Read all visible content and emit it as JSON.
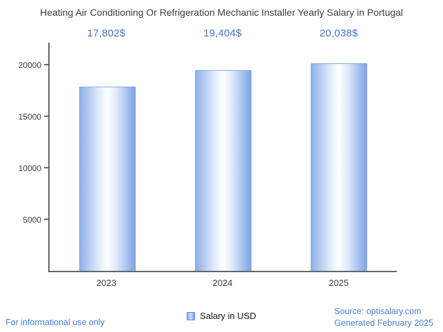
{
  "chart_data": {
    "type": "bar",
    "title": "Heating Air Conditioning Or Refrigeration Mechanic Installer Yearly Salary in Portugal",
    "categories": [
      "2023",
      "2024",
      "2025"
    ],
    "values": [
      17802,
      19404,
      20038
    ],
    "value_labels": [
      "17,802$",
      "19,404$",
      "20,038$"
    ],
    "yticks": [
      5000,
      10000,
      15000,
      20000
    ],
    "ylim": [
      0,
      22000
    ],
    "legend": "Salary in USD",
    "grid": false,
    "legend_position": "bottom-center"
  },
  "footer": {
    "disclaimer": "For informational use only",
    "source": "Source: optisalary.com",
    "generated": "Generated February 2025"
  },
  "colors": {
    "accent_blue": "#4273C9",
    "bar_fill_edge": "#7FA3E6",
    "bar_fill_center": "#FFFFFF",
    "axis": "#666666",
    "title_text": "#3D3D3D",
    "footer_text": "#4A7FD6"
  }
}
